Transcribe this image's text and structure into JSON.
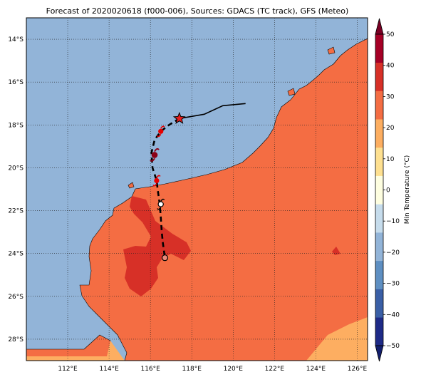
{
  "title": "Forecast of 2020020618 (f000-006), Sources: GDACS (TC track), GFS (Meteo)",
  "map": {
    "lon_range": [
      110.0,
      126.5
    ],
    "lat_range": [
      -29.0,
      -13.0
    ],
    "lon_ticks": [
      {
        "value": 112,
        "label": "112°E"
      },
      {
        "value": 114,
        "label": "114°E"
      },
      {
        "value": 116,
        "label": "116°E"
      },
      {
        "value": 118,
        "label": "118°E"
      },
      {
        "value": 120,
        "label": "120°E"
      },
      {
        "value": 122,
        "label": "122°E"
      },
      {
        "value": 124,
        "label": "124°E"
      },
      {
        "value": 126,
        "label": "126°E"
      }
    ],
    "lat_ticks": [
      {
        "value": -14,
        "label": "14°S"
      },
      {
        "value": -16,
        "label": "16°S"
      },
      {
        "value": -18,
        "label": "18°S"
      },
      {
        "value": -20,
        "label": "20°S"
      },
      {
        "value": -22,
        "label": "22°S"
      },
      {
        "value": -24,
        "label": "24°S"
      },
      {
        "value": -26,
        "label": "26°S"
      },
      {
        "value": -28,
        "label": "28°S"
      }
    ],
    "grid": "dotted",
    "colors": {
      "ocean": "#92b4d8",
      "land_20_30": "#f46d43",
      "land_10_20": "#fdae61",
      "land_30_40": "#d73027",
      "coast": "#000000"
    }
  },
  "colorbar": {
    "label": "Min Temperature (°C)",
    "min": -50,
    "max": 50,
    "ticks": [
      "−50",
      "−40",
      "−30",
      "−20",
      "−10",
      "0",
      "10",
      "20",
      "30",
      "40",
      "50"
    ],
    "bands": [
      "#1e2a87",
      "#3a5fa6",
      "#5e8fc2",
      "#92b4d8",
      "#c6dcec",
      "#fefee0",
      "#fee090",
      "#fdae61",
      "#f46d43",
      "#d73027",
      "#a50026"
    ],
    "under_color": "#131f6e",
    "over_color": "#7a0024"
  },
  "track": {
    "observed": [
      [
        120.6,
        -17.0
      ],
      [
        119.5,
        -17.1
      ],
      [
        118.6,
        -17.5
      ],
      [
        117.4,
        -17.7
      ]
    ],
    "current_position": [
      117.4,
      -17.7
    ],
    "forecast": [
      [
        117.4,
        -17.7
      ],
      [
        116.9,
        -18.0
      ],
      [
        116.5,
        -18.3
      ],
      [
        116.2,
        -18.7
      ],
      [
        116.05,
        -19.3
      ],
      [
        116.1,
        -20.0
      ],
      [
        116.3,
        -20.6
      ],
      [
        116.35,
        -21.0
      ],
      [
        116.45,
        -21.7
      ],
      [
        116.5,
        -22.3
      ],
      [
        116.55,
        -23.0
      ],
      [
        116.6,
        -23.5
      ],
      [
        116.7,
        -24.2
      ]
    ],
    "forecast_points": [
      {
        "lon": 116.5,
        "lat": -18.3,
        "category": "TS"
      },
      {
        "lon": 116.2,
        "lat": -19.4,
        "category": "TC1"
      },
      {
        "lon": 116.3,
        "lat": -20.6,
        "category": "TS"
      },
      {
        "lon": 116.5,
        "lat": -21.7,
        "category": "TD"
      },
      {
        "lon": 116.7,
        "lat": -24.2,
        "category": "LOW"
      }
    ]
  }
}
